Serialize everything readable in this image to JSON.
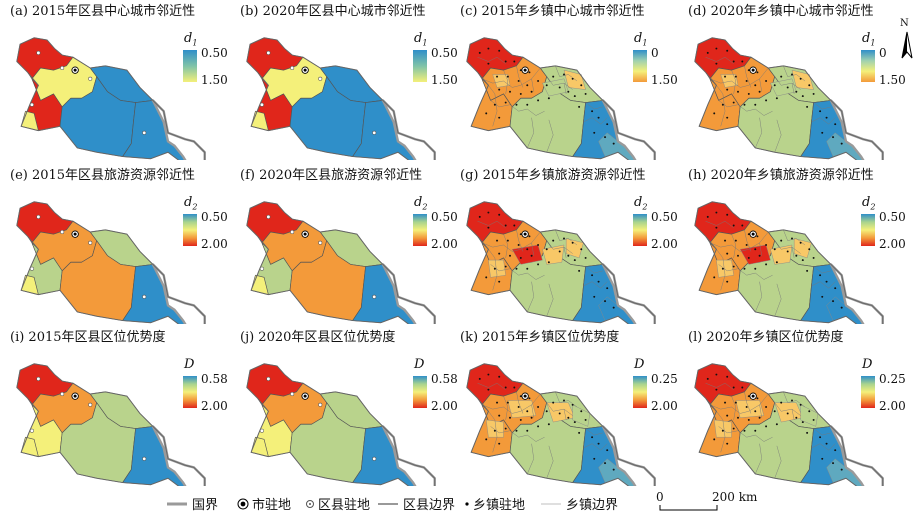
{
  "panels": [
    {
      "label": "(a) 2015年区县中心城市邻近性",
      "sym": "d",
      "sub": "1",
      "top": "0.50",
      "bottom": "1.50",
      "level": "county",
      "scheme": "p1",
      "grad": "bgy"
    },
    {
      "label": "(b) 2020年区县中心城市邻近性",
      "sym": "d",
      "sub": "1",
      "top": "0.50",
      "bottom": "1.50",
      "level": "county",
      "scheme": "p2",
      "grad": "bgy"
    },
    {
      "label": "(c) 2015年乡镇中心城市邻近性",
      "sym": "d",
      "sub": "1",
      "top": "0",
      "bottom": "1.50",
      "level": "town",
      "scheme": "p3",
      "grad": "bgy2"
    },
    {
      "label": "(d) 2020年乡镇中心城市邻近性",
      "sym": "d",
      "sub": "1",
      "top": "0",
      "bottom": "1.50",
      "level": "town",
      "scheme": "p4",
      "grad": "bgy2"
    },
    {
      "label": "(e) 2015年区县旅游资源邻近性",
      "sym": "d",
      "sub": "2",
      "top": "0.50",
      "bottom": "2.00",
      "level": "county",
      "scheme": "p5",
      "grad": "byr"
    },
    {
      "label": "(f) 2020年区县旅游资源邻近性",
      "sym": "d",
      "sub": "2",
      "top": "0.50",
      "bottom": "2.00",
      "level": "county",
      "scheme": "p5",
      "grad": "byr"
    },
    {
      "label": "(g) 2015年乡镇旅游资源邻近性",
      "sym": "d",
      "sub": "2",
      "top": "0.50",
      "bottom": "2.00",
      "level": "town",
      "scheme": "p7",
      "grad": "byr"
    },
    {
      "label": "(h) 2020年乡镇旅游资源邻近性",
      "sym": "d",
      "sub": "2",
      "top": "0.50",
      "bottom": "2.00",
      "level": "town",
      "scheme": "p7",
      "grad": "byr"
    },
    {
      "label": "(i) 2015年区县区位优势度",
      "sym": "D",
      "sub": "",
      "top": "0.58",
      "bottom": "2.00",
      "level": "county",
      "scheme": "p9",
      "grad": "byr"
    },
    {
      "label": "(j) 2020年区县区位优势度",
      "sym": "D",
      "sub": "",
      "top": "0.58",
      "bottom": "2.00",
      "level": "county",
      "scheme": "p9",
      "grad": "byr"
    },
    {
      "label": "(k) 2015年乡镇区位优势度",
      "sym": "D",
      "sub": "",
      "top": "0.25",
      "bottom": "2.00",
      "level": "town",
      "scheme": "p11",
      "grad": "byr"
    },
    {
      "label": "(l) 2020年乡镇区位优势度",
      "sym": "D",
      "sub": "",
      "top": "0.25",
      "bottom": "2.00",
      "level": "town",
      "scheme": "p11",
      "grad": "byr"
    }
  ],
  "legend": {
    "national_border": "国界",
    "city_seat": "市驻地",
    "county_seat": "区县驻地",
    "county_border": "区县边界",
    "town_seat": "乡镇驻地",
    "town_border": "乡镇边界"
  },
  "scalebar": {
    "zero": "0",
    "distance": "200 km"
  },
  "north_label": "N",
  "colors": {
    "red": "#e0261b",
    "orange": "#f39a3a",
    "lightorange": "#f8c867",
    "yellow": "#f4f07a",
    "green": "#b9d38c",
    "blue": "#2f8fc9",
    "teal": "#5fa9bf",
    "grey": "#9a9a9a"
  }
}
